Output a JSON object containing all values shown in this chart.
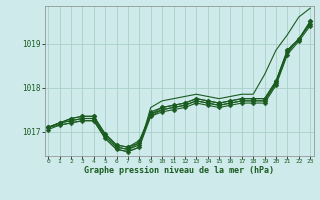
{
  "background_color": "#ceeaea",
  "grid_color": "#a8d0c8",
  "line_color": "#1a5c20",
  "x_ticks": [
    0,
    1,
    2,
    3,
    4,
    5,
    6,
    7,
    8,
    9,
    10,
    11,
    12,
    13,
    14,
    15,
    16,
    17,
    18,
    19,
    20,
    21,
    22,
    23
  ],
  "y_ticks": [
    1017,
    1018,
    1019
  ],
  "ylim": [
    1016.45,
    1019.85
  ],
  "xlim": [
    -0.3,
    23.3
  ],
  "xlabel": "Graphe pression niveau de la mer (hPa)",
  "series": [
    {
      "y": [
        1017.1,
        1017.2,
        1017.25,
        1017.3,
        1017.3,
        1016.9,
        1016.65,
        1016.6,
        1016.75,
        1017.35,
        1017.5,
        1017.55,
        1017.6,
        1017.7,
        1017.65,
        1017.6,
        1017.65,
        1017.7,
        1017.7,
        1017.7,
        1018.1,
        1018.8,
        1019.1,
        1019.45
      ],
      "marker": null,
      "lw": 0.8
    },
    {
      "y": [
        1017.1,
        1017.2,
        1017.3,
        1017.35,
        1017.35,
        1016.95,
        1016.7,
        1016.65,
        1016.8,
        1017.4,
        1017.55,
        1017.6,
        1017.65,
        1017.75,
        1017.7,
        1017.65,
        1017.7,
        1017.75,
        1017.75,
        1017.75,
        1018.15,
        1018.85,
        1019.1,
        1019.5
      ],
      "marker": "D",
      "lw": 0.8
    },
    {
      "y": [
        1017.1,
        1017.2,
        1017.3,
        1017.35,
        1017.35,
        1016.95,
        1016.7,
        1016.65,
        1016.75,
        1017.45,
        1017.55,
        1017.6,
        1017.65,
        1017.75,
        1017.7,
        1017.65,
        1017.7,
        1017.75,
        1017.75,
        1017.75,
        1018.15,
        1018.85,
        1019.1,
        1019.5
      ],
      "marker": "D",
      "lw": 0.8
    },
    {
      "y": [
        1017.1,
        1017.2,
        1017.25,
        1017.3,
        1017.3,
        1016.9,
        1016.65,
        1016.6,
        1016.7,
        1017.4,
        1017.5,
        1017.55,
        1017.6,
        1017.7,
        1017.65,
        1017.6,
        1017.65,
        1017.7,
        1017.7,
        1017.7,
        1018.1,
        1018.8,
        1019.1,
        1019.45
      ],
      "marker": "D",
      "lw": 0.8
    },
    {
      "y": [
        1017.05,
        1017.15,
        1017.2,
        1017.25,
        1017.25,
        1016.85,
        1016.6,
        1016.55,
        1016.65,
        1017.35,
        1017.45,
        1017.5,
        1017.55,
        1017.65,
        1017.6,
        1017.55,
        1017.6,
        1017.65,
        1017.65,
        1017.65,
        1018.05,
        1018.75,
        1019.05,
        1019.4
      ],
      "marker": "D",
      "lw": 0.8
    },
    {
      "y": [
        1017.1,
        1017.15,
        1017.2,
        1017.25,
        1017.25,
        1016.85,
        1016.6,
        1016.55,
        1016.65,
        1017.55,
        1017.7,
        1017.75,
        1017.8,
        1017.85,
        1017.8,
        1017.75,
        1017.8,
        1017.85,
        1017.85,
        1018.3,
        1018.85,
        1019.2,
        1019.6,
        1019.8
      ],
      "marker": null,
      "lw": 0.8
    }
  ],
  "marker_size": 2.5
}
